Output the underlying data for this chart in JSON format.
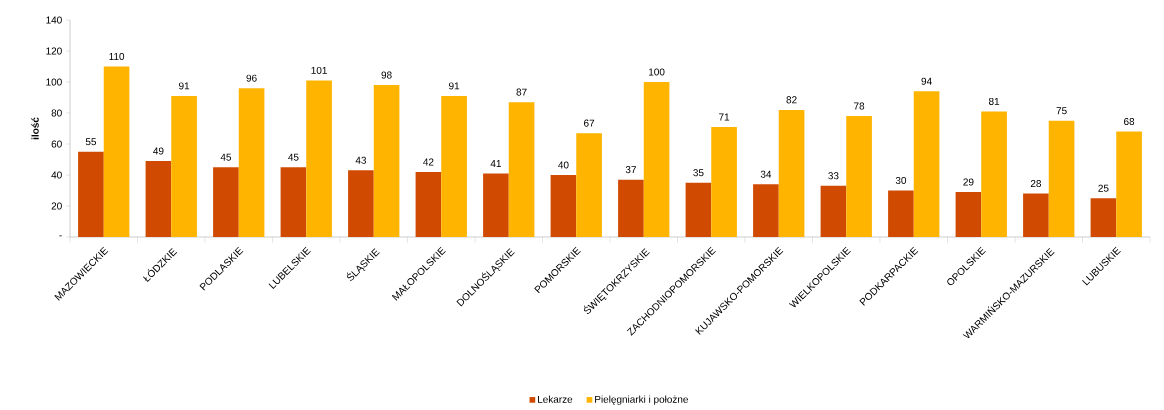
{
  "chart_data": {
    "type": "bar",
    "ylabel": "ilość",
    "categories": [
      "MAZOWIECKIE",
      "ŁÓDZKIE",
      "PODLASKIE",
      "LUBELSKIE",
      "ŚLĄSKIE",
      "MAŁOPOLSKIE",
      "DOLNOŚLĄSKIE",
      "POMORSKIE",
      "ŚWIĘTOKRZYSKIE",
      "ZACHODNIOPOMORSKIE",
      "KUJAWSKO-POMORSKIE",
      "WIELKOPOLSKIE",
      "PODKARPACKIE",
      "OPOLSKIE",
      "WARMIŃSKO-MAZURSKIE",
      "LUBUSKIE"
    ],
    "series": [
      {
        "name": "Lekarze",
        "color": "#d04a02",
        "values": [
          55,
          49,
          45,
          45,
          43,
          42,
          41,
          40,
          37,
          35,
          34,
          33,
          30,
          29,
          28,
          25
        ]
      },
      {
        "name": "Pielęgniarki i położne",
        "color": "#ffb400",
        "values": [
          110,
          91,
          96,
          101,
          98,
          91,
          87,
          67,
          100,
          71,
          82,
          78,
          94,
          81,
          75,
          68
        ]
      }
    ],
    "ylim": [
      0,
      140
    ],
    "yticks": [
      {
        "value": 0,
        "label": "-"
      },
      20,
      40,
      60,
      80,
      100,
      120,
      140
    ],
    "data_labels": true,
    "legend": "bottom",
    "grid": false
  }
}
